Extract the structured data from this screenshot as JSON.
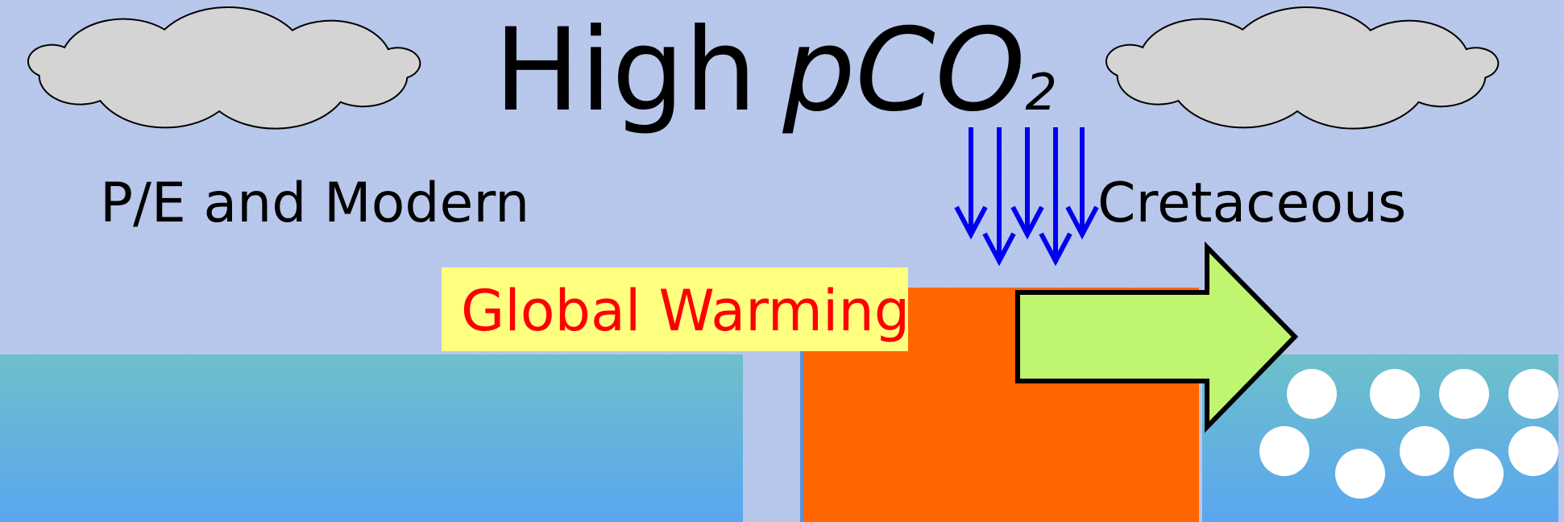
{
  "title": {
    "main": "High",
    "formula": "pCO",
    "subscript": "2"
  },
  "labels": {
    "left": "P/E and Modern",
    "right": "Cretaceous",
    "box": "Global Warming"
  }
}
